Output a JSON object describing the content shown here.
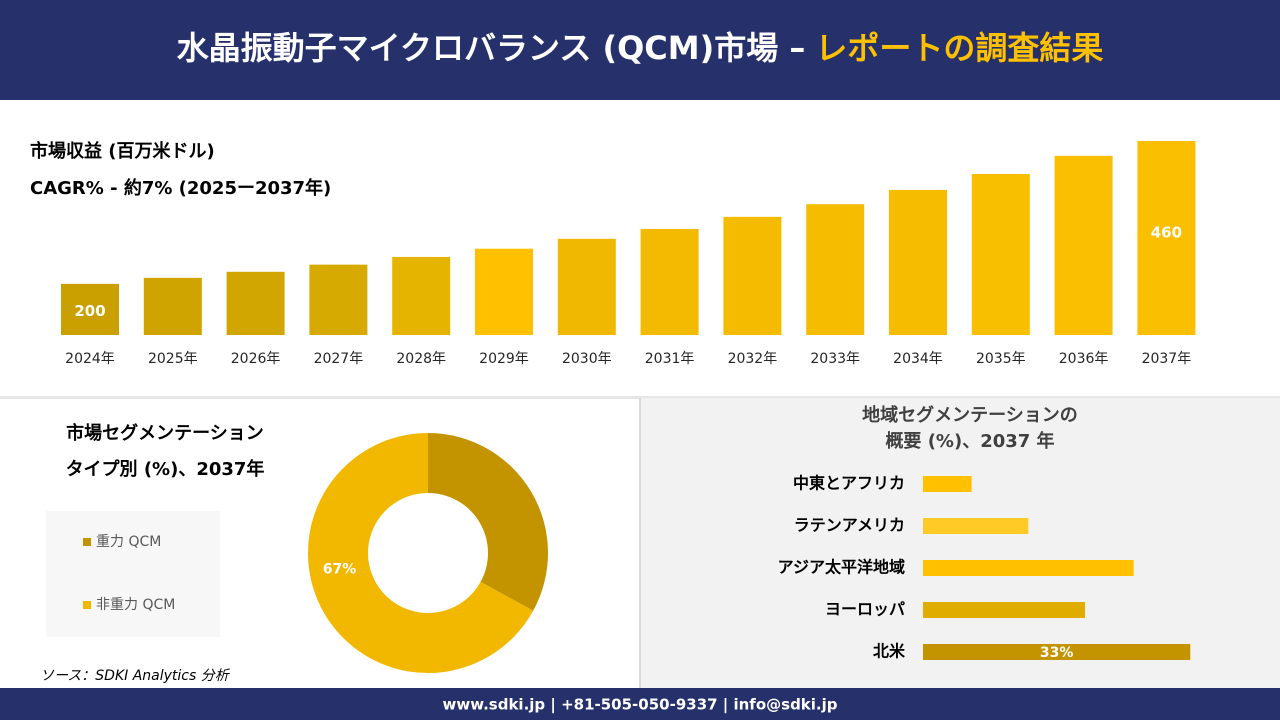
{
  "header": {
    "title_main": "水晶振動子マイクロバランス (QCM)市場 –",
    "title_highlight": "レポートの調査結果"
  },
  "chart_data": [
    {
      "type": "bar",
      "title": "市場収益 (百万米ドル)",
      "subtitle": "CAGR% - 約7% (2025ー2037年)",
      "categories": [
        "2024年",
        "2025年",
        "2026年",
        "2027年",
        "2028年",
        "2029年",
        "2030年",
        "2031年",
        "2032年",
        "2033年",
        "2034年",
        "2035年",
        "2036年",
        "2037年"
      ],
      "values": [
        200,
        211,
        222,
        235,
        249,
        264,
        282,
        300,
        322,
        345,
        371,
        400,
        433,
        460
      ],
      "value_labels": [
        "200",
        null,
        null,
        null,
        null,
        null,
        null,
        null,
        null,
        null,
        null,
        null,
        null,
        "460"
      ],
      "colors": [
        "#c9a000",
        "#cfa300",
        "#d1a600",
        "#d6aa00",
        "#e4b400",
        "#ffc000",
        "#f0b800",
        "#f2ba00",
        "#f4bb00",
        "#f5bc00",
        "#f6bd00",
        "#f8be00",
        "#f9bf00",
        "#fac000"
      ],
      "ylim": [
        107,
        460
      ]
    },
    {
      "type": "donut",
      "title": [
        "市場セグメンテーション",
        "タイプ別 (%)、2037年"
      ],
      "series": [
        {
          "name": "重力 QCM",
          "color": "#c49400",
          "value": 33
        },
        {
          "name": "非重力 QCM",
          "color": "#f2b800",
          "value": 67,
          "value_label": "67%"
        }
      ]
    },
    {
      "type": "barh",
      "title": [
        "地域セグメンテーションの",
        "概要 (%)、2037 年"
      ],
      "categories": [
        "中東とアフリカ",
        "ラテンアメリカ",
        "アジア太平洋地域",
        "ヨーロッパ",
        "北米"
      ],
      "values": [
        6,
        13,
        26,
        20,
        33
      ],
      "value_labels": [
        null,
        null,
        null,
        null,
        "33%"
      ],
      "colors": [
        "#ffc000",
        "#ffc926",
        "#ffc000",
        "#e0ac00",
        "#c49400"
      ],
      "xlim": [
        0,
        40
      ]
    }
  ],
  "source": "ソース：SDKI Analytics 分析",
  "footer": "www.sdki.jp | +81-505-050-9337 | info@sdki.jp"
}
